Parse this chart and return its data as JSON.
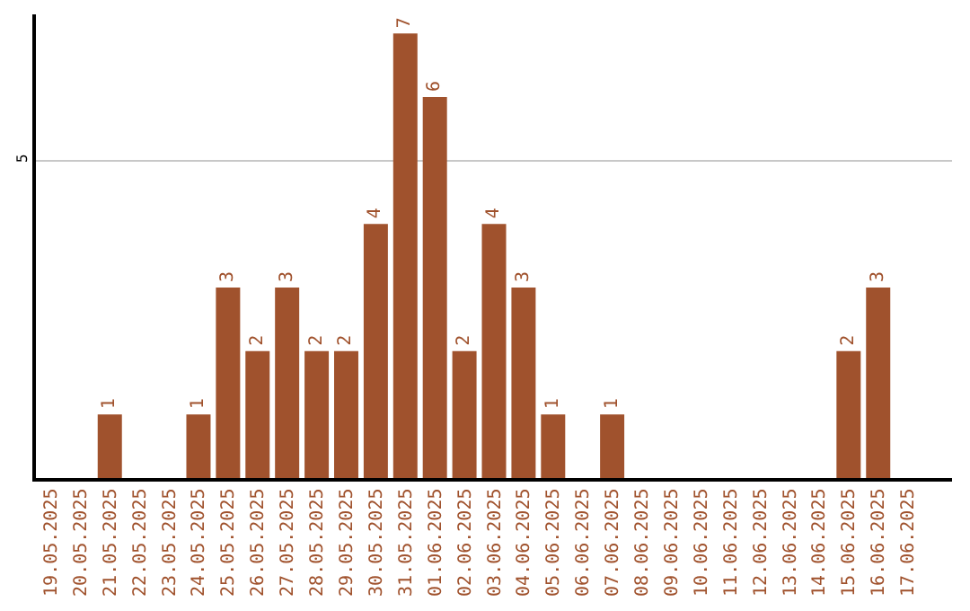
{
  "chart_data": {
    "type": "bar",
    "categories": [
      "19.05.2025",
      "20.05.2025",
      "21.05.2025",
      "22.05.2025",
      "23.05.2025",
      "24.05.2025",
      "25.05.2025",
      "26.05.2025",
      "27.05.2025",
      "28.05.2025",
      "29.05.2025",
      "30.05.2025",
      "31.05.2025",
      "01.06.2025",
      "02.06.2025",
      "03.06.2025",
      "04.06.2025",
      "05.06.2025",
      "06.06.2025",
      "07.06.2025",
      "08.06.2025",
      "09.06.2025",
      "10.06.2025",
      "11.06.2025",
      "12.06.2025",
      "13.06.2025",
      "14.06.2025",
      "15.06.2025",
      "16.06.2025",
      "17.06.2025"
    ],
    "values": [
      0,
      0,
      1,
      0,
      0,
      1,
      3,
      2,
      3,
      2,
      2,
      4,
      7,
      6,
      2,
      4,
      3,
      1,
      0,
      1,
      0,
      0,
      0,
      0,
      0,
      0,
      0,
      2,
      3,
      0
    ],
    "value_labels": [
      null,
      null,
      "1",
      null,
      null,
      "1",
      "3",
      "2",
      "3",
      "2",
      "2",
      "4",
      "7",
      "6",
      "2",
      "4",
      "3",
      "1",
      null,
      "1",
      null,
      null,
      null,
      null,
      null,
      null,
      null,
      "2",
      "3",
      null
    ],
    "color": "#a0522d",
    "ylim": [
      0,
      7.3
    ],
    "yticks": [
      5
    ],
    "grid": "y",
    "legend": false
  }
}
